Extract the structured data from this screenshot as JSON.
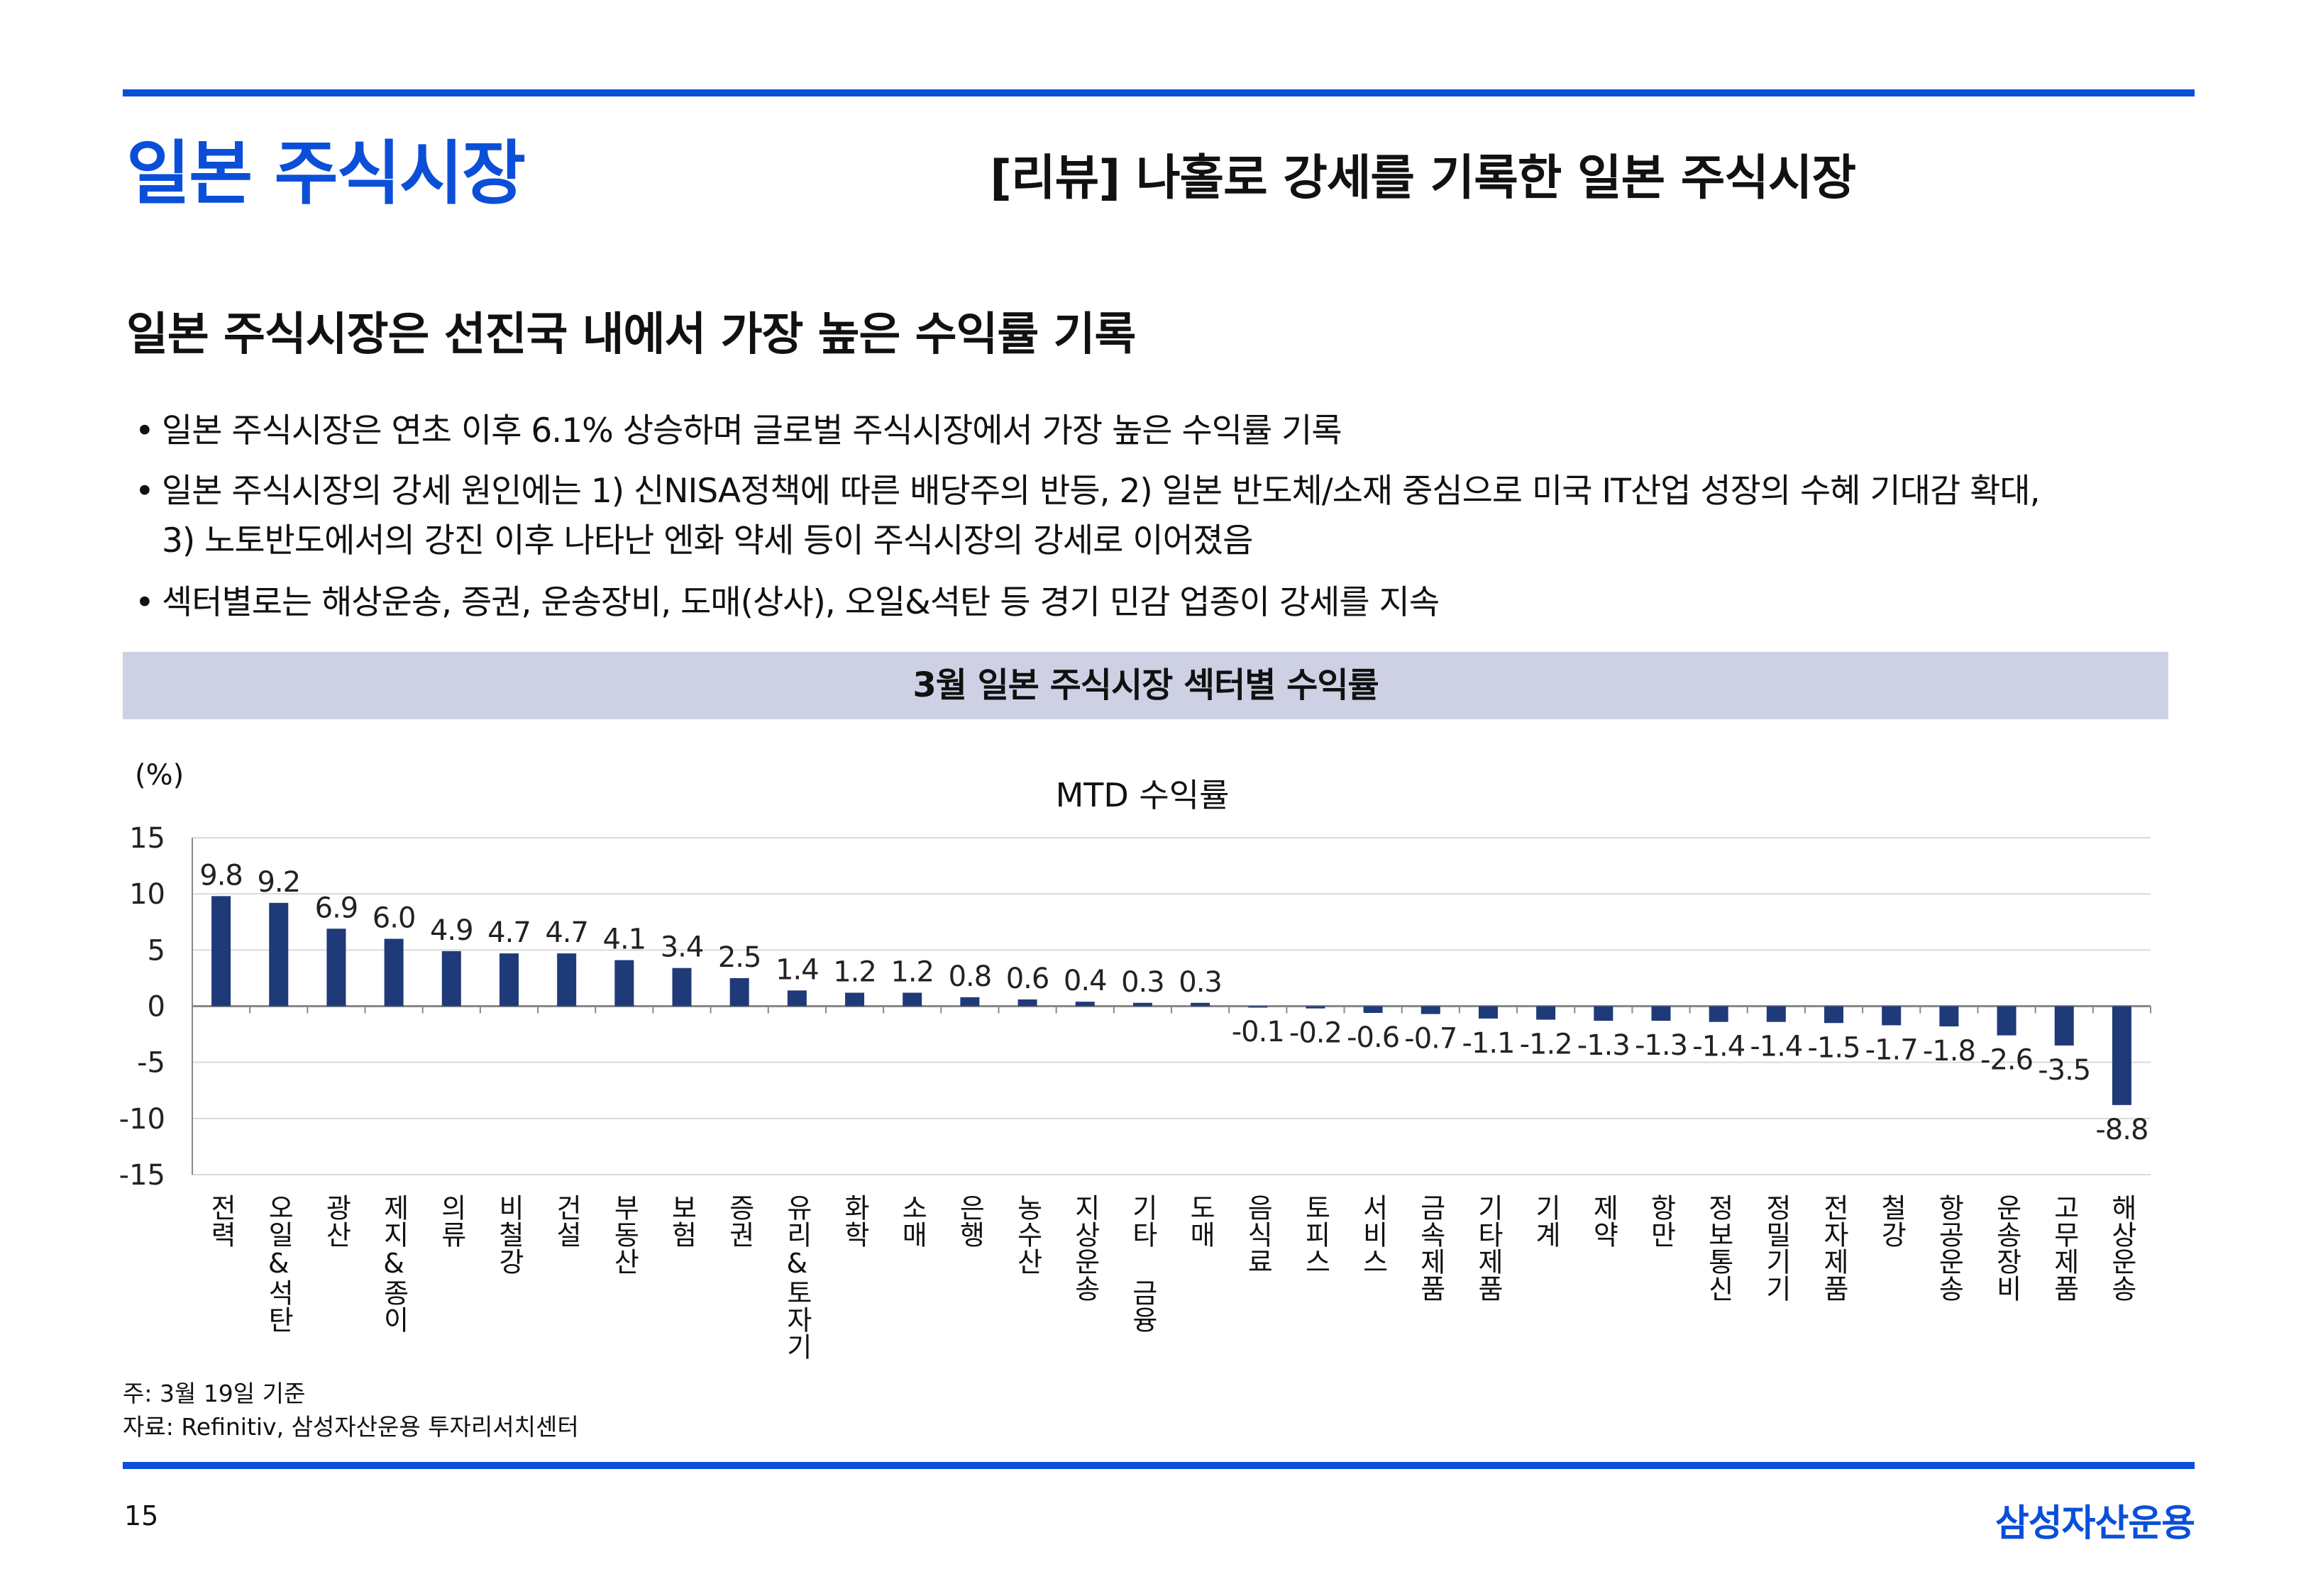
{
  "header": {
    "section_title": "일본 주식시장",
    "page_title": "[리뷰] 나홀로 강세를 기록한 일본 주식시장"
  },
  "headline": "일본 주식시장은 선진국 내에서 가장 높은 수익률 기록",
  "bullets": [
    "일본 주식시장은 연초 이후 6.1% 상승하며 글로벌 주식시장에서 가장 높은 수익률 기록",
    "일본 주식시장의 강세 원인에는 1) 신NISA정책에 따른 배당주의 반등, 2) 일본 반도체/소재 중심으로 미국 IT산업 성장의 수혜 기대감 확대,",
    "3) 노토반도에서의 강진 이후 나타난 엔화 약세 등이 주식시장의 강세로 이어졌음",
    "섹터별로는 해상운송, 증권, 운송장비, 도매(상사), 오일&석탄 등 경기 민감 업종이 강세를 지속"
  ],
  "bullet_symbol": "•",
  "chart_data": {
    "type": "bar",
    "title": "3월 일본 주식시장 섹터별 수익률",
    "series_name": "MTD 수익률",
    "ylabel": "(%)",
    "ylim": [
      -15,
      15
    ],
    "yticks": [
      15,
      10,
      5,
      0,
      -5,
      -10,
      -15
    ],
    "grid": true,
    "categories": [
      "전력",
      "오일&석탄",
      "광산",
      "제지&종이",
      "의류",
      "비철강",
      "건설",
      "부동산",
      "보험",
      "증권",
      "유리&토자기",
      "화학",
      "소매",
      "은행",
      "농수산",
      "지상운송",
      "기타 금융",
      "도매",
      "음식료",
      "토피스",
      "서비스",
      "금속제품",
      "기타제품",
      "기계",
      "제약",
      "항만",
      "정보통신",
      "정밀기기",
      "전자제품",
      "철강",
      "항공운송",
      "운송장비",
      "고무제품",
      "해상운송"
    ],
    "values": [
      9.8,
      9.2,
      6.9,
      6.0,
      4.9,
      4.7,
      4.7,
      4.1,
      3.4,
      2.5,
      1.4,
      1.2,
      1.2,
      0.8,
      0.6,
      0.4,
      0.3,
      0.3,
      -0.1,
      -0.2,
      -0.6,
      -0.7,
      -1.1,
      -1.2,
      -1.3,
      -1.3,
      -1.4,
      -1.4,
      -1.5,
      -1.7,
      -1.8,
      -2.6,
      -3.5,
      -8.8
    ],
    "bar_color": "#1f3a78"
  },
  "notes": [
    "주: 3월 19일 기준",
    "자료: Refinitiv, 삼성자산운용 투자리서치센터"
  ],
  "footer": {
    "page_number": "15",
    "logo_text": "삼성자산운용"
  },
  "colors": {
    "accent": "#0b4fd8",
    "chart_header_bg": "#cdd1e3"
  }
}
